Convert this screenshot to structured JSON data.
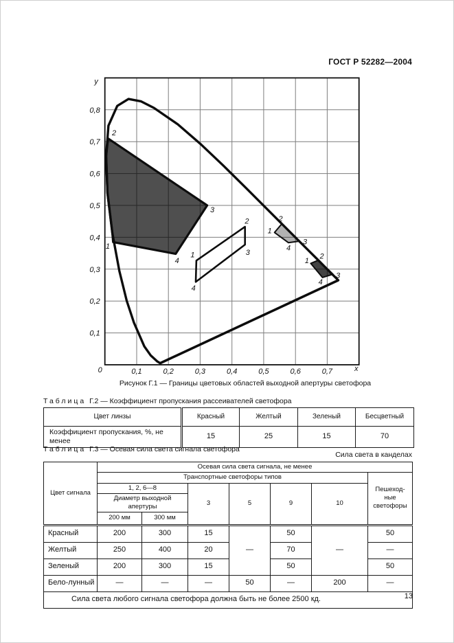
{
  "page": {
    "doc_code": "ГОСТ Р 52282—2004",
    "page_number": "13"
  },
  "figure": {
    "caption": "Рисунок Г.1 — Границы цветовых областей выходной апертуры светофора",
    "chart_data": {
      "type": "line",
      "title": "Границы цветовых областей выходной апертуры светофора",
      "xlabel": "x",
      "ylabel": "y",
      "xlim": [
        0,
        0.8
      ],
      "ylim": [
        0,
        0.9
      ],
      "grid": true,
      "grid_color": "#7d7d7d",
      "line_color": "#0d0d0d",
      "x_ticks": [
        {
          "v": 0.1,
          "label": "0,1"
        },
        {
          "v": 0.2,
          "label": "0,2"
        },
        {
          "v": 0.3,
          "label": "0,3"
        },
        {
          "v": 0.4,
          "label": "0,4"
        },
        {
          "v": 0.5,
          "label": "0,5"
        },
        {
          "v": 0.6,
          "label": "0,6"
        },
        {
          "v": 0.7,
          "label": "0,7"
        }
      ],
      "y_ticks": [
        {
          "v": 0.1,
          "label": "0,1"
        },
        {
          "v": 0.2,
          "label": "0,2"
        },
        {
          "v": 0.3,
          "label": "0,3"
        },
        {
          "v": 0.4,
          "label": "0,4"
        },
        {
          "v": 0.5,
          "label": "0,5"
        },
        {
          "v": 0.6,
          "label": "0,6"
        },
        {
          "v": 0.7,
          "label": "0,7"
        },
        {
          "v": 0.8,
          "label": "0,8"
        }
      ],
      "origin_label": "0",
      "spectral_locus": [
        [
          0.1741,
          0.005
        ],
        [
          0.1644,
          0.0109
        ],
        [
          0.144,
          0.0297
        ],
        [
          0.1241,
          0.0578
        ],
        [
          0.0913,
          0.1327
        ],
        [
          0.0687,
          0.2007
        ],
        [
          0.0454,
          0.295
        ],
        [
          0.0235,
          0.4127
        ],
        [
          0.0082,
          0.5384
        ],
        [
          0.0039,
          0.6548
        ],
        [
          0.0112,
          0.7502
        ],
        [
          0.039,
          0.812
        ],
        [
          0.0743,
          0.8338
        ],
        [
          0.1142,
          0.8262
        ],
        [
          0.1547,
          0.8059
        ],
        [
          0.2296,
          0.7543
        ],
        [
          0.3016,
          0.6923
        ],
        [
          0.3731,
          0.6245
        ],
        [
          0.4441,
          0.5547
        ],
        [
          0.5125,
          0.4866
        ],
        [
          0.5752,
          0.4242
        ],
        [
          0.627,
          0.3725
        ],
        [
          0.6658,
          0.334
        ],
        [
          0.6915,
          0.3083
        ],
        [
          0.719,
          0.2809
        ],
        [
          0.7347,
          0.2653
        ]
      ],
      "purple_line": [
        [
          0.7347,
          0.2653
        ],
        [
          0.1741,
          0.005
        ]
      ],
      "regions": [
        {
          "name": "green-region",
          "signal": "Зеленый",
          "fill": "#4f4f4f",
          "stroke_width": 3.2,
          "points": [
            [
              0.026,
              0.385
            ],
            [
              0.0235,
              0.413
            ],
            [
              0.0082,
              0.538
            ],
            [
              0.0039,
              0.655
            ],
            [
              0.01,
              0.71
            ],
            [
              0.322,
              0.5
            ],
            [
              0.223,
              0.348
            ]
          ],
          "vertex_labels": [
            {
              "text": "1",
              "x": 0.009,
              "y": 0.372
            },
            {
              "text": "2",
              "x": 0.029,
              "y": 0.727
            },
            {
              "text": "3",
              "x": 0.338,
              "y": 0.486
            },
            {
              "text": "4",
              "x": 0.227,
              "y": 0.327
            }
          ]
        },
        {
          "name": "white-region",
          "signal": "Бело-лунный",
          "fill": "none",
          "stroke_width": 2.6,
          "points": [
            [
              0.288,
              0.327
            ],
            [
              0.441,
              0.433
            ],
            [
              0.441,
              0.377
            ],
            [
              0.286,
              0.26
            ]
          ],
          "vertex_labels": [
            {
              "text": "1",
              "x": 0.276,
              "y": 0.345
            },
            {
              "text": "2",
              "x": 0.447,
              "y": 0.45
            },
            {
              "text": "3",
              "x": 0.45,
              "y": 0.352
            },
            {
              "text": "4",
              "x": 0.279,
              "y": 0.24
            }
          ]
        },
        {
          "name": "yellow-region",
          "signal": "Желтый",
          "fill": "#b2b2b2",
          "stroke_width": 2,
          "points": [
            [
              0.534,
              0.415
            ],
            [
              0.557,
              0.442
            ],
            [
              0.613,
              0.388
            ],
            [
              0.578,
              0.383
            ]
          ],
          "vertex_labels": [
            {
              "text": "1",
              "x": 0.519,
              "y": 0.42
            },
            {
              "text": "2",
              "x": 0.553,
              "y": 0.458
            },
            {
              "text": "3",
              "x": 0.63,
              "y": 0.386
            },
            {
              "text": "4",
              "x": 0.578,
              "y": 0.366
            }
          ]
        },
        {
          "name": "red-region",
          "signal": "Красный",
          "fill": "#434343",
          "stroke_width": 2,
          "points": [
            [
              0.648,
              0.318
            ],
            [
              0.672,
              0.328
            ],
            [
              0.718,
              0.284
            ],
            [
              0.685,
              0.274
            ]
          ],
          "vertex_labels": [
            {
              "text": "1",
              "x": 0.636,
              "y": 0.326
            },
            {
              "text": "2",
              "x": 0.683,
              "y": 0.34
            },
            {
              "text": "3",
              "x": 0.734,
              "y": 0.28
            },
            {
              "text": "4",
              "x": 0.679,
              "y": 0.26
            }
          ]
        }
      ]
    }
  },
  "table_g2": {
    "label": "Таблица",
    "rest": "Г.2 — Коэффициент пропускания рассеивателей светофора",
    "headers": [
      "Цвет линзы",
      "Красный",
      "Желтый",
      "Зеленый",
      "Бесцветный"
    ],
    "row_label": "Коэффициент пропускания, %, не менее",
    "values": [
      "15",
      "25",
      "15",
      "70"
    ]
  },
  "table_g3": {
    "label": "Таблица",
    "rest": "Г.3 — Осевая сила света сигнала светофора",
    "unit_note": "Сила света в канделах",
    "header": {
      "signal": "Цвет сигнала",
      "main": "Осевая сила света сигнала, не менее",
      "transport": "Транспортные светофоры типов",
      "pedestrian": "Пешеход-ные светофоры",
      "group_1268": "1, 2, 6—8",
      "diameter": "Диаметр выходной апертуры",
      "d200": "200 мм",
      "d300": "300 мм",
      "t3": "3",
      "t5": "5",
      "t9": "9",
      "t10": "10"
    },
    "rows": [
      {
        "signal": "Красный",
        "d200": "200",
        "d300": "300",
        "t3": "15",
        "t5": "—",
        "t9": "50",
        "t10": "—",
        "ped": "50"
      },
      {
        "signal": "Желтый",
        "d200": "250",
        "d300": "400",
        "t3": "20",
        "t9": "70",
        "ped": "—"
      },
      {
        "signal": "Зеленый",
        "d200": "200",
        "d300": "300",
        "t3": "15",
        "t9": "50",
        "ped": "50"
      },
      {
        "signal": "Бело-лунный",
        "d200": "—",
        "d300": "—",
        "t3": "—",
        "t5": "50",
        "t9": "—",
        "t10": "200",
        "ped": "—"
      }
    ],
    "footer": "Сила света любого сигнала светофора должна быть не более 2500 кд."
  }
}
